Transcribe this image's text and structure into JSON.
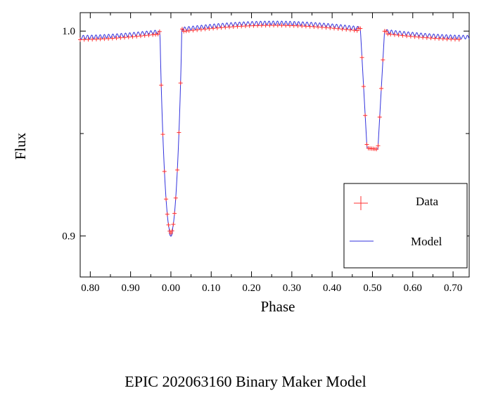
{
  "chart_data": {
    "type": "scatter",
    "xlabel": "Phase",
    "ylabel": "Flux",
    "title": "EPIC 202063160 Binary Maker Model",
    "x_tick_labels": [
      "0.80",
      "0.90",
      "0.00",
      "0.10",
      "0.20",
      "0.30",
      "0.40",
      "0.50",
      "0.60",
      "0.70"
    ],
    "y_tick_labels": [
      "1.0",
      "0.9"
    ],
    "xlim": [
      -0.225,
      0.74
    ],
    "ylim": [
      0.88,
      1.009
    ],
    "legend_position": "bottom-right",
    "grid": false,
    "series": [
      {
        "name": "Data",
        "marker": "plus",
        "color": "#ff3333",
        "phases": [
          -0.225,
          -0.215,
          -0.205,
          -0.195,
          -0.185,
          -0.175,
          -0.165,
          -0.155,
          -0.145,
          -0.135,
          -0.125,
          -0.115,
          -0.105,
          -0.095,
          -0.085,
          -0.075,
          -0.065,
          -0.055,
          -0.045,
          -0.038,
          -0.032,
          -0.028,
          -0.024,
          -0.02,
          -0.016,
          -0.012,
          -0.009,
          -0.006,
          -0.003,
          0.0,
          0.003,
          0.006,
          0.009,
          0.012,
          0.016,
          0.02,
          0.024,
          0.028,
          0.032,
          0.038,
          0.045,
          0.055,
          0.065,
          0.075,
          0.085,
          0.095,
          0.105,
          0.115,
          0.125,
          0.135,
          0.145,
          0.155,
          0.165,
          0.175,
          0.185,
          0.195,
          0.205,
          0.215,
          0.225,
          0.235,
          0.245,
          0.255,
          0.265,
          0.275,
          0.285,
          0.295,
          0.305,
          0.315,
          0.325,
          0.335,
          0.345,
          0.355,
          0.365,
          0.375,
          0.385,
          0.395,
          0.405,
          0.415,
          0.425,
          0.435,
          0.445,
          0.455,
          0.462,
          0.466,
          0.47,
          0.474,
          0.478,
          0.482,
          0.486,
          0.49,
          0.494,
          0.498,
          0.502,
          0.506,
          0.51,
          0.514,
          0.518,
          0.522,
          0.526,
          0.53,
          0.534,
          0.538,
          0.545,
          0.555,
          0.565,
          0.575,
          0.585,
          0.595,
          0.605,
          0.615,
          0.625,
          0.635,
          0.645,
          0.655,
          0.665,
          0.675,
          0.685,
          0.695,
          0.705,
          0.715
        ]
      },
      {
        "name": "Model",
        "line": true,
        "color": "#3333dd"
      }
    ]
  }
}
